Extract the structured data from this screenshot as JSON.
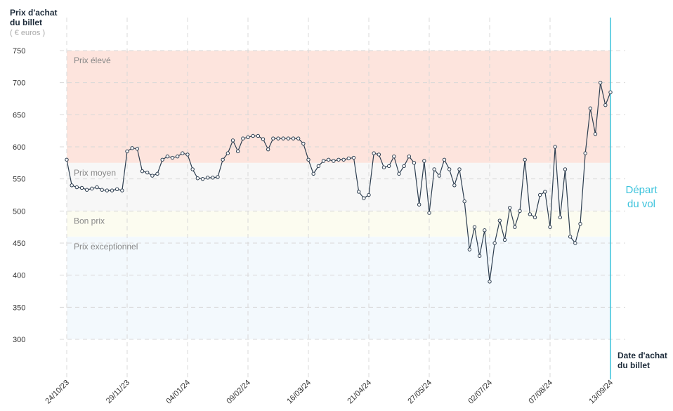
{
  "chart_data": {
    "type": "line",
    "y_label": [
      "Prix d'achat",
      "du billet"
    ],
    "y_unit": "( € euros )",
    "x_label": [
      "Date d'achat",
      "du billet"
    ],
    "annotation": [
      "Départ",
      "du vol"
    ],
    "ylim": [
      250,
      750
    ],
    "yticks": [
      300,
      350,
      400,
      450,
      500,
      550,
      600,
      650,
      700,
      750
    ],
    "grid": true,
    "bands": [
      {
        "label": "Prix élevé",
        "from": 575,
        "to": 750,
        "color": "#fde4dd"
      },
      {
        "label": "Prix moyen",
        "from": 500,
        "to": 575,
        "color": "#f7f7f7"
      },
      {
        "label": "Bon prix",
        "from": 460,
        "to": 500,
        "color": "#fcfcf0"
      },
      {
        "label": "Prix exceptionnel",
        "from": 300,
        "to": 460,
        "color": "#f3f9fd"
      }
    ],
    "categories": [
      "24/10/23",
      null,
      null,
      null,
      null,
      null,
      null,
      null,
      null,
      null,
      null,
      null,
      "29/11/23",
      null,
      null,
      null,
      null,
      null,
      null,
      null,
      null,
      null,
      null,
      null,
      "04/01/24",
      null,
      null,
      null,
      null,
      null,
      null,
      null,
      null,
      null,
      null,
      null,
      "09/02/24",
      null,
      null,
      null,
      null,
      null,
      null,
      null,
      null,
      null,
      null,
      null,
      "16/03/24",
      null,
      null,
      null,
      null,
      null,
      null,
      null,
      null,
      null,
      null,
      null,
      "21/04/24",
      null,
      null,
      null,
      null,
      null,
      null,
      null,
      null,
      null,
      null,
      null,
      "27/05/24",
      null,
      null,
      null,
      null,
      null,
      null,
      null,
      null,
      null,
      null,
      null,
      "02/07/24",
      null,
      null,
      null,
      null,
      null,
      null,
      null,
      null,
      null,
      null,
      null,
      "07/08/24",
      null,
      null,
      null,
      null,
      null,
      null,
      null,
      null,
      null,
      null,
      null,
      "13/09/24"
    ],
    "series": [
      {
        "name": "Prix",
        "color": "#2d3e50",
        "values": [
          580,
          540,
          537,
          536,
          533,
          535,
          537,
          533,
          532,
          532,
          534,
          532,
          593,
          598,
          597,
          562,
          560,
          555,
          558,
          580,
          585,
          583,
          585,
          590,
          588,
          565,
          551,
          550,
          552,
          552,
          553,
          580,
          590,
          610,
          593,
          613,
          615,
          617,
          617,
          612,
          596,
          613,
          613,
          613,
          613,
          613,
          613,
          605,
          580,
          558,
          570,
          578,
          580,
          578,
          580,
          580,
          582,
          583,
          530,
          520,
          525,
          590,
          588,
          568,
          570,
          585,
          558,
          570,
          585,
          575,
          510,
          578,
          497,
          565,
          555,
          580,
          565,
          540,
          565,
          515,
          440,
          475,
          430,
          470,
          390,
          450,
          485,
          455,
          505,
          475,
          500,
          580,
          495,
          490,
          525,
          530,
          475,
          600,
          490,
          565,
          460,
          450,
          480,
          590,
          660,
          620,
          700,
          665,
          685
        ]
      }
    ]
  }
}
